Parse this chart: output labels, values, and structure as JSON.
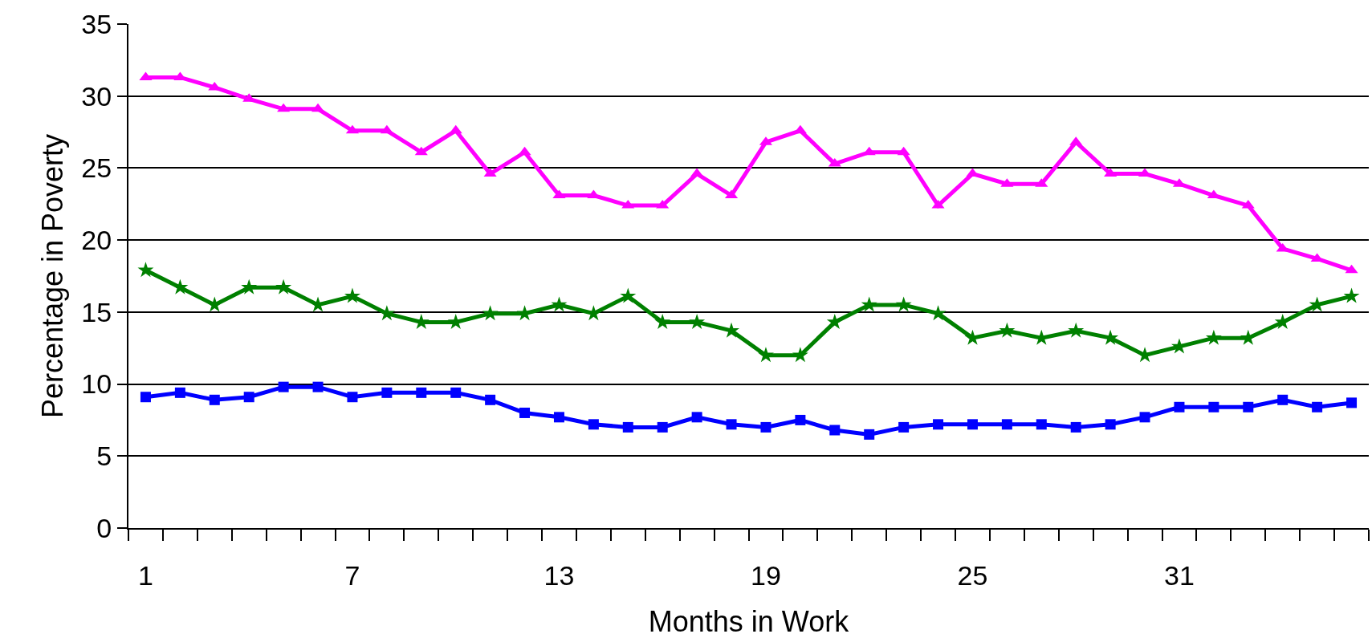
{
  "chart_data": {
    "type": "line",
    "xlabel": "Months in Work",
    "ylabel": "Percentage in Poverty",
    "categories": [
      "1",
      null,
      null,
      null,
      null,
      null,
      "7",
      null,
      null,
      null,
      null,
      null,
      "13",
      null,
      null,
      null,
      null,
      null,
      "19",
      null,
      null,
      null,
      null,
      null,
      "25",
      null,
      null,
      null,
      null,
      null,
      "31",
      null,
      null,
      null,
      null,
      null
    ],
    "series": [
      {
        "color": "#ff00ff",
        "marker": "triangle",
        "values": [
          31.3,
          31.3,
          30.6,
          29.8,
          29.1,
          29.1,
          27.6,
          27.6,
          26.1,
          27.6,
          24.6,
          26.1,
          23.1,
          23.1,
          22.4,
          22.4,
          24.6,
          23.1,
          26.8,
          27.6,
          25.3,
          26.1,
          26.1,
          22.4,
          24.6,
          23.9,
          23.9,
          26.8,
          24.6,
          24.6,
          23.9,
          23.1,
          22.4,
          19.4,
          18.7,
          17.9
        ]
      },
      {
        "color": "#008000",
        "marker": "star",
        "values": [
          17.9,
          16.7,
          15.5,
          16.7,
          16.7,
          15.5,
          16.1,
          14.9,
          14.3,
          14.3,
          14.9,
          14.9,
          15.5,
          14.9,
          16.1,
          14.3,
          14.3,
          13.7,
          12.0,
          12.0,
          14.3,
          15.5,
          15.5,
          14.9,
          13.2,
          13.7,
          13.2,
          13.7,
          13.2,
          12.0,
          12.6,
          13.2,
          13.2,
          14.3,
          15.5,
          16.1
        ]
      },
      {
        "color": "#0000ff",
        "marker": "square",
        "values": [
          9.1,
          9.4,
          8.9,
          9.1,
          9.8,
          9.8,
          9.1,
          9.4,
          9.4,
          9.4,
          8.9,
          8.0,
          7.7,
          7.2,
          7.0,
          7.0,
          7.7,
          7.2,
          7.0,
          7.5,
          6.8,
          6.5,
          7.0,
          7.2,
          7.2,
          7.2,
          7.2,
          7.0,
          7.2,
          7.7,
          8.4,
          8.4,
          8.4,
          8.9,
          8.4,
          8.7
        ]
      }
    ],
    "ylim": [
      0,
      35
    ],
    "yticks": [
      0,
      5,
      10,
      15,
      20,
      25,
      30,
      35
    ],
    "grid": "y",
    "legend": false,
    "line_style": "solid"
  }
}
